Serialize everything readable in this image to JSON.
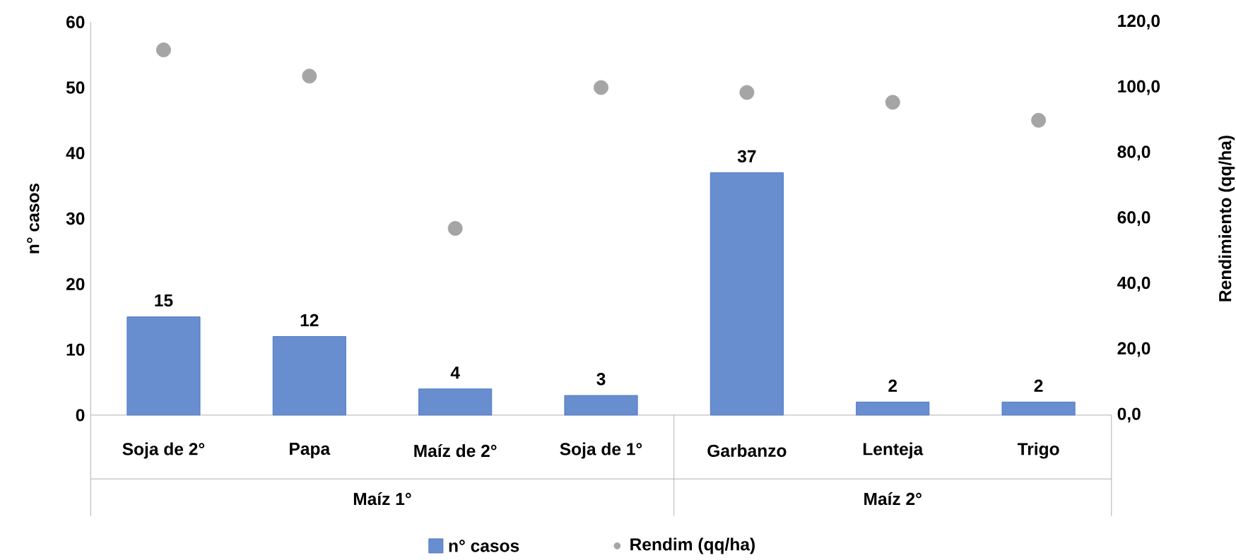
{
  "chart_data": {
    "type": "bar",
    "categories": [
      "Soja de 2°",
      "Papa",
      "Maíz de 2°",
      "Soja de 1°",
      "Garbanzo",
      "Lenteja",
      "Trigo"
    ],
    "series": [
      {
        "name": "n° casos",
        "color": "#4472c4",
        "values": [
          15,
          12,
          4,
          3,
          37,
          2,
          2
        ],
        "value_labels": [
          "15",
          "12",
          "4",
          "3",
          "37",
          "2",
          "2"
        ]
      },
      {
        "name": "Rendim (qq/ha)",
        "type": "scatter",
        "axis": "y2",
        "color": "#a5a5a5",
        "values": [
          111.5,
          103.5,
          57,
          100,
          98.5,
          95.5,
          90
        ]
      }
    ],
    "ylabel": "n° casos",
    "y2label": "Rendimiento (qq/ha)",
    "ylim": [
      0,
      60
    ],
    "yticks": [
      0,
      10,
      20,
      30,
      40,
      50,
      60
    ],
    "y2lim": [
      0,
      120
    ],
    "y2ticks": [
      {
        "value": 0,
        "label": "0,0"
      },
      {
        "value": 20,
        "label": "20,0"
      },
      {
        "value": 40,
        "label": "40,0"
      },
      {
        "value": 60,
        "label": "60,0"
      },
      {
        "value": 80,
        "label": "80,0"
      },
      {
        "value": 100,
        "label": "100,0"
      },
      {
        "value": 120,
        "label": "120,0"
      }
    ],
    "annotations": [
      "Maíz 1°",
      "Maíz 2°"
    ],
    "legend": "bottom",
    "marker": "circle",
    "grid": false
  }
}
